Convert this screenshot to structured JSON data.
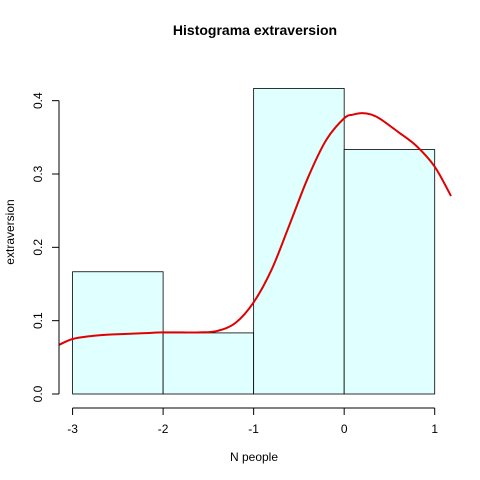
{
  "chart_data": {
    "type": "bar",
    "title": "Histograma  extraversion",
    "xlabel": "N people",
    "ylabel": "extraversion",
    "bins": [
      {
        "x0": -3,
        "x1": -2,
        "value": 0.1667
      },
      {
        "x0": -2,
        "x1": -1,
        "value": 0.0833
      },
      {
        "x0": -1,
        "x1": 0,
        "value": 0.4167
      },
      {
        "x0": 0,
        "x1": 1,
        "value": 0.3333
      }
    ],
    "xlim": [
      -3.15,
      1.18
    ],
    "ylim": [
      0,
      0.42
    ],
    "xticks": [
      -3,
      -2,
      -1,
      0,
      1
    ],
    "yticks": [
      0.0,
      0.1,
      0.2,
      0.3,
      0.4
    ],
    "xtick_labels": [
      "-3",
      "-2",
      "-1",
      "0",
      "1"
    ],
    "ytick_labels": [
      "0.0",
      "0.1",
      "0.2",
      "0.3",
      "0.4"
    ],
    "density": {
      "x": [
        -3.15,
        -3.0,
        -2.8,
        -2.6,
        -2.4,
        -2.2,
        -2.0,
        -1.8,
        -1.6,
        -1.4,
        -1.2,
        -1.0,
        -0.8,
        -0.6,
        -0.4,
        -0.2,
        0.0,
        0.1,
        0.2,
        0.3,
        0.4,
        0.6,
        0.8,
        1.0,
        1.18
      ],
      "y": [
        0.067,
        0.075,
        0.079,
        0.081,
        0.082,
        0.083,
        0.084,
        0.084,
        0.084,
        0.086,
        0.097,
        0.125,
        0.17,
        0.232,
        0.295,
        0.346,
        0.376,
        0.381,
        0.383,
        0.381,
        0.375,
        0.357,
        0.338,
        0.31,
        0.27
      ]
    },
    "grid": false,
    "bar_color": "#E0FFFF",
    "line_color": "#E00000"
  }
}
